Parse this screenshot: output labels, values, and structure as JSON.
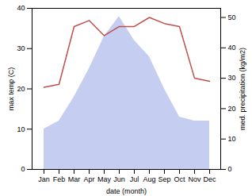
{
  "chart_data": {
    "type": "line",
    "categories": [
      "Jan",
      "Feb",
      "Mar",
      "Apr",
      "May",
      "Jun",
      "Jul",
      "Aug",
      "Sep",
      "Oct",
      "Nov",
      "Dec"
    ],
    "series": [
      {
        "type": "area",
        "color": "#c5cef0",
        "values": [
          10,
          12,
          18,
          25,
          33,
          38,
          32,
          28,
          20,
          13,
          12,
          12
        ]
      },
      {
        "type": "line",
        "color": "#c0504d",
        "axis": "y2",
        "values": [
          27,
          28,
          47,
          49,
          44,
          47,
          47,
          50,
          48,
          47,
          30,
          29
        ]
      }
    ],
    "xlabel": "date (month)",
    "ylabel": "max temp (C)",
    "y2label": "med. precipitation (kg/m2)",
    "ylim": [
      0,
      40
    ],
    "yticks": [
      0,
      10,
      20,
      30,
      40
    ],
    "y2lim": [
      0,
      53
    ],
    "y2ticks": [
      0,
      10,
      20,
      30,
      40,
      50
    ],
    "grid": false
  }
}
